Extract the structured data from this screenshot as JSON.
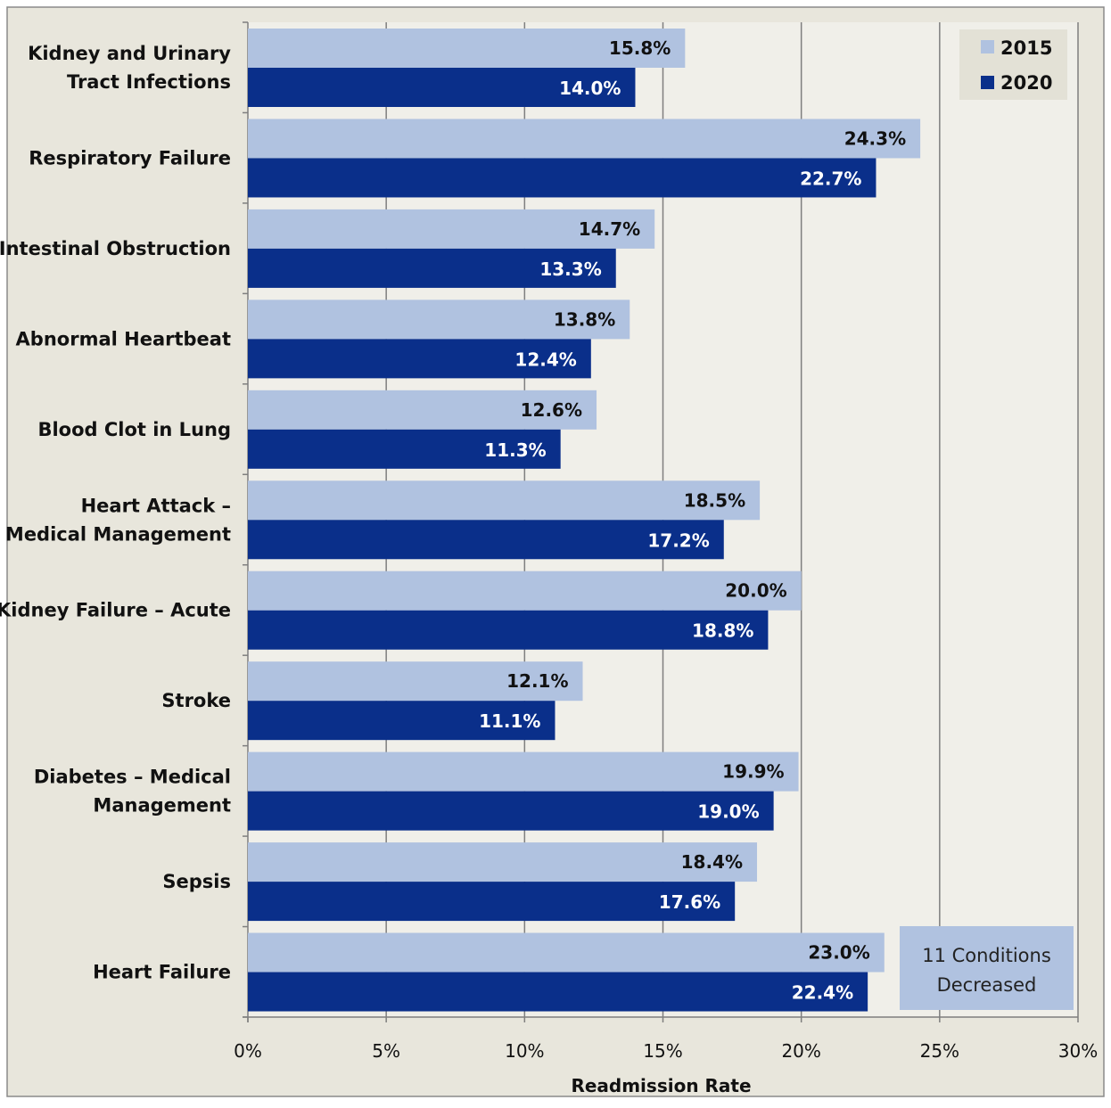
{
  "chart_data": {
    "type": "bar",
    "orientation": "horizontal",
    "categories": [
      "Kidney and Urinary Tract Infections",
      "Respiratory Failure",
      "Intestinal Obstruction",
      "Abnormal Heartbeat",
      "Blood Clot in Lung",
      "Heart Attack – Medical Management",
      "Kidney Failure – Acute",
      "Stroke",
      "Diabetes – Medical Management",
      "Sepsis",
      "Heart Failure"
    ],
    "category_lines": [
      [
        "Kidney and Urinary",
        "Tract Infections"
      ],
      [
        "Respiratory Failure"
      ],
      [
        "Intestinal Obstruction"
      ],
      [
        "Abnormal Heartbeat"
      ],
      [
        "Blood Clot in Lung"
      ],
      [
        "Heart Attack –",
        "Medical Management"
      ],
      [
        "Kidney Failure – Acute"
      ],
      [
        "Stroke"
      ],
      [
        "Diabetes – Medical",
        "Management"
      ],
      [
        "Sepsis"
      ],
      [
        "Heart Failure"
      ]
    ],
    "series": [
      {
        "name": "2015",
        "color": "#b0c2e0",
        "values": [
          15.8,
          24.3,
          14.7,
          13.8,
          12.6,
          18.5,
          20.0,
          12.1,
          19.9,
          18.4,
          23.0
        ],
        "labels": [
          "15.8%",
          "24.3%",
          "14.7%",
          "13.8%",
          "12.6%",
          "18.5%",
          "20.0%",
          "12.1%",
          "19.9%",
          "18.4%",
          "23.0%"
        ]
      },
      {
        "name": "2020",
        "color": "#0a2f8a",
        "values": [
          14.0,
          22.7,
          13.3,
          12.4,
          11.3,
          17.2,
          18.8,
          11.1,
          19.0,
          17.6,
          22.4
        ],
        "labels": [
          "14.0%",
          "22.7%",
          "13.3%",
          "12.4%",
          "11.3%",
          "17.2%",
          "18.8%",
          "11.1%",
          "19.0%",
          "17.6%",
          "22.4%"
        ]
      }
    ],
    "xlabel": "Readmission Rate",
    "xlim": [
      0,
      30
    ],
    "xticks": [
      0,
      5,
      10,
      15,
      20,
      25,
      30
    ],
    "xtick_labels": [
      "0%",
      "5%",
      "10%",
      "15%",
      "20%",
      "25%",
      "30%"
    ],
    "grid": "vertical",
    "legend_position": "top-right",
    "annotation": {
      "lines": [
        "11 Conditions",
        "Decreased"
      ]
    },
    "colors": {
      "plot_background": "#f0efe9",
      "outer_background": "#e8e6dc",
      "gridline": "#7f7f7f",
      "annotation_fill": "#b0c2e0"
    }
  }
}
